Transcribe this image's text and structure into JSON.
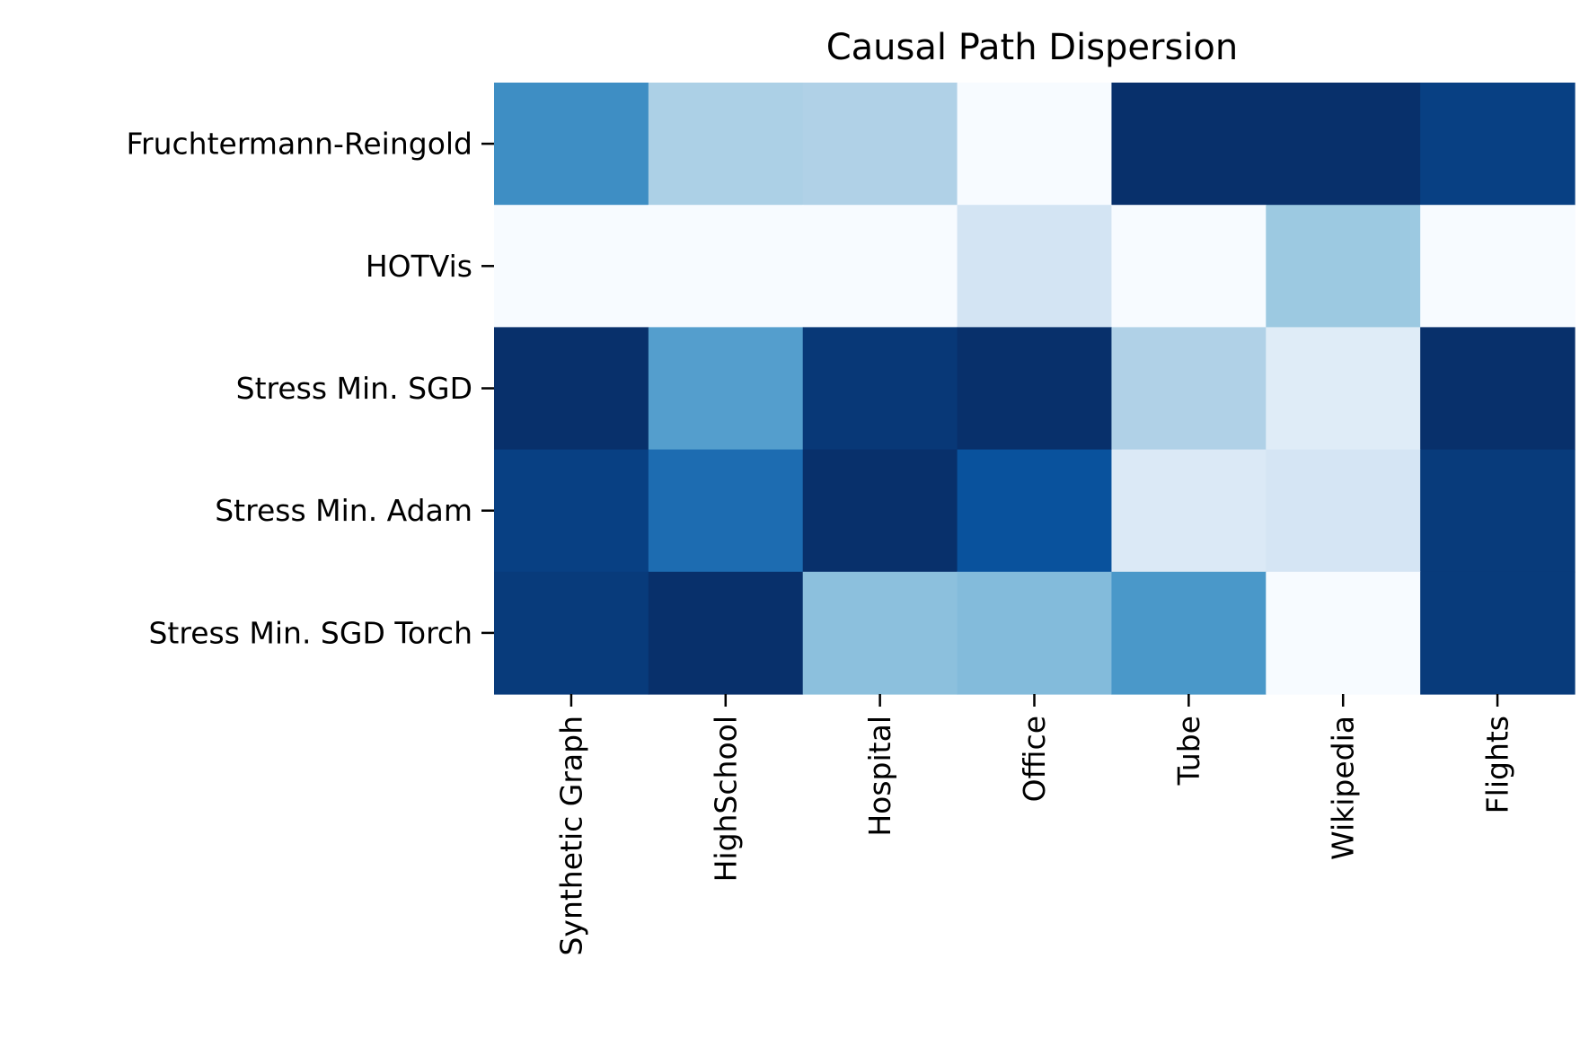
{
  "chart_data": {
    "type": "heatmap",
    "title": "Causal Path Dispersion",
    "xlabel": "",
    "ylabel": "",
    "x_categories": [
      "Synthetic Graph",
      "HighSchool",
      "Hospital",
      "Office",
      "Tube",
      "Wikipedia",
      "Flights"
    ],
    "y_categories": [
      "Fruchtermann-Reingold",
      "HOTVis",
      "Stress Min. SGD",
      "Stress Min. Adam",
      "Stress Min. SGD Torch"
    ],
    "values": [
      [
        0.64,
        0.33,
        0.32,
        0.0,
        1.0,
        1.0,
        0.94
      ],
      [
        0.0,
        0.0,
        0.0,
        0.18,
        0.0,
        0.38,
        0.0
      ],
      [
        1.0,
        0.57,
        0.97,
        1.0,
        0.32,
        0.12,
        1.0
      ],
      [
        0.94,
        0.77,
        1.0,
        0.87,
        0.14,
        0.17,
        0.96
      ],
      [
        0.96,
        1.0,
        0.42,
        0.44,
        0.6,
        0.0,
        0.96
      ]
    ],
    "colormap": "Blues",
    "colorbar": false,
    "grid": false
  }
}
